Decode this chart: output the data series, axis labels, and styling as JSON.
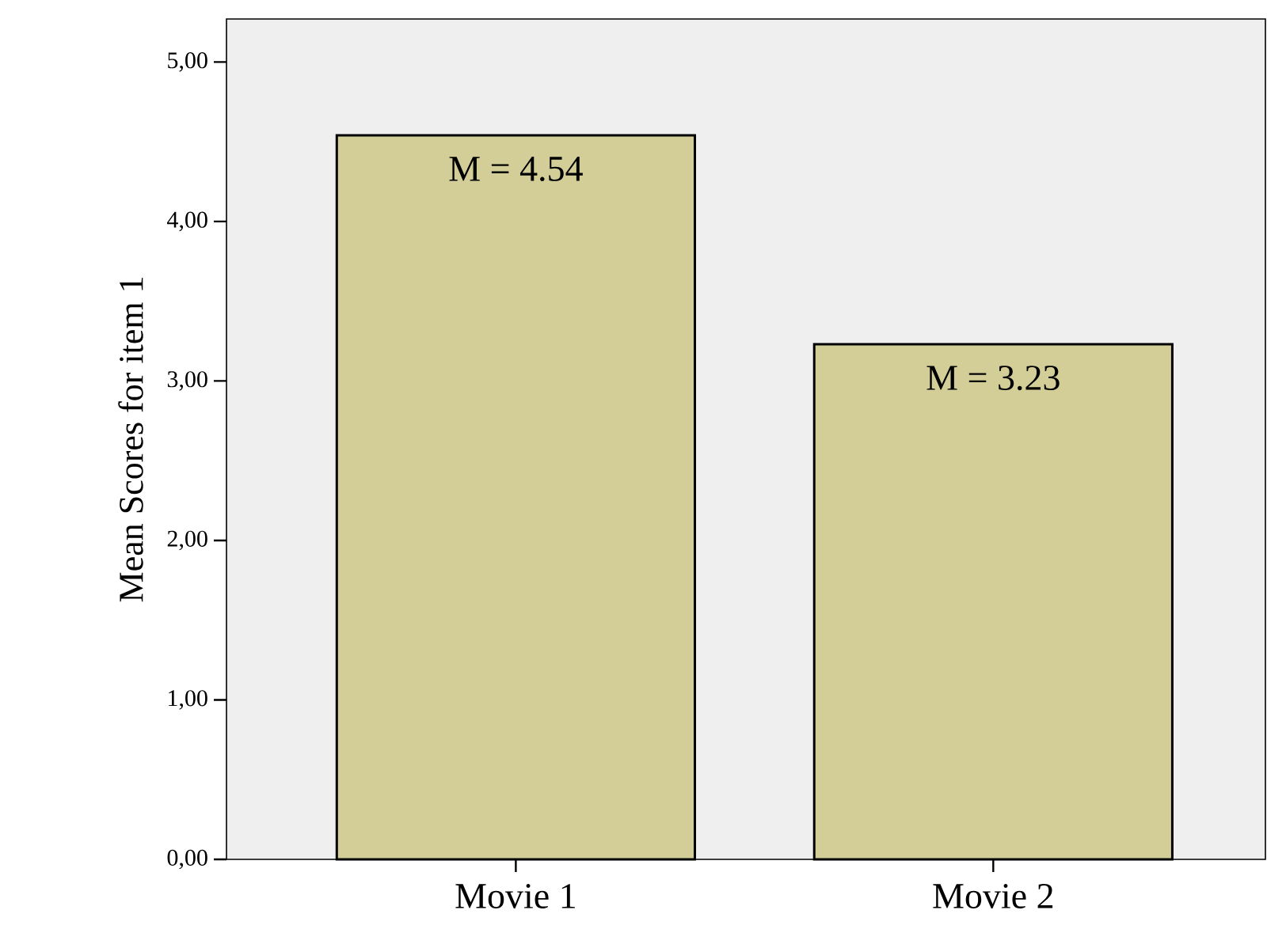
{
  "chart_data": {
    "type": "bar",
    "ylabel": "Mean Scores for item 1",
    "categories": [
      "Movie 1",
      "Movie 2"
    ],
    "values": [
      4.54,
      3.23
    ],
    "value_labels": [
      "M = 4.54",
      "M = 3.23"
    ],
    "color": "#d3ce97",
    "ylim": [
      0,
      5.27
    ],
    "yticks": [
      {
        "value": 0,
        "label": "0,00"
      },
      {
        "value": 1,
        "label": "1,00"
      },
      {
        "value": 2,
        "label": "2,00"
      },
      {
        "value": 3,
        "label": "3,00"
      },
      {
        "value": 4,
        "label": "4,00"
      },
      {
        "value": 5,
        "label": "5,00"
      }
    ]
  }
}
